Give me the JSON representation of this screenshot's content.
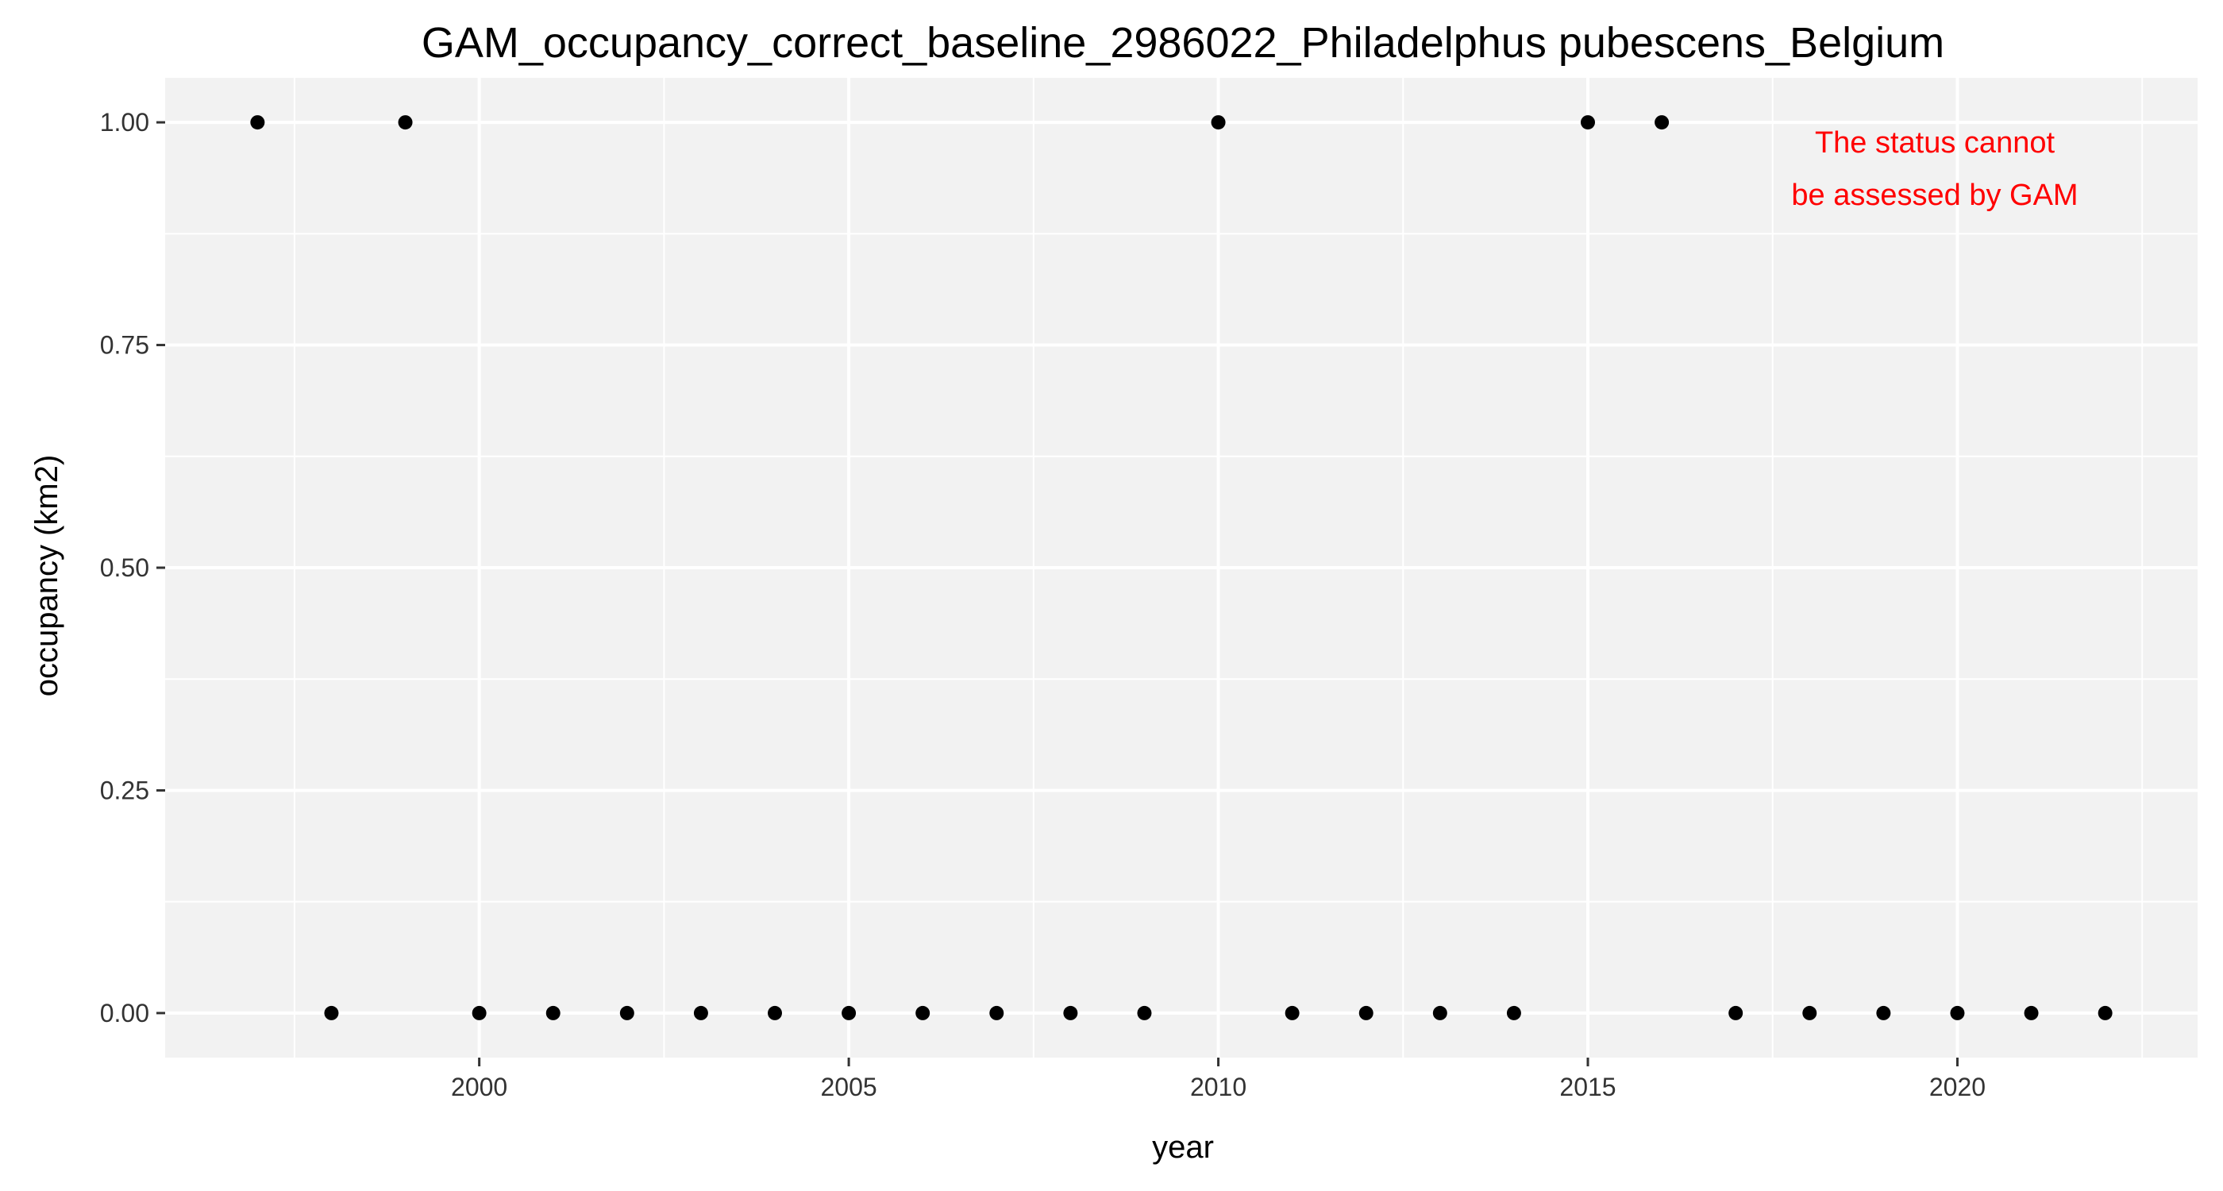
{
  "chart_data": {
    "type": "scatter",
    "title": "GAM_occupancy_correct_baseline_2986022_Philadelphus pubescens_Belgium",
    "xlabel": "year",
    "ylabel": "occupancy (km2)",
    "xlim": [
      1995.75,
      2023.25
    ],
    "ylim": [
      -0.05,
      1.05
    ],
    "x_ticks": [
      2000,
      2005,
      2010,
      2015,
      2020
    ],
    "x_tick_labels": [
      "2000",
      "2005",
      "2010",
      "2015",
      "2020"
    ],
    "y_ticks": [
      0,
      0.25,
      0.5,
      0.75,
      1.0
    ],
    "y_tick_labels": [
      "0.00",
      "0.25",
      "0.50",
      "0.75",
      "1.00"
    ],
    "grid": true,
    "legend": "none",
    "points": [
      {
        "x": 1997,
        "y": 1
      },
      {
        "x": 1998,
        "y": 0
      },
      {
        "x": 1999,
        "y": 1
      },
      {
        "x": 2000,
        "y": 0
      },
      {
        "x": 2001,
        "y": 0
      },
      {
        "x": 2002,
        "y": 0
      },
      {
        "x": 2003,
        "y": 0
      },
      {
        "x": 2004,
        "y": 0
      },
      {
        "x": 2005,
        "y": 0
      },
      {
        "x": 2006,
        "y": 0
      },
      {
        "x": 2007,
        "y": 0
      },
      {
        "x": 2008,
        "y": 0
      },
      {
        "x": 2009,
        "y": 0
      },
      {
        "x": 2010,
        "y": 1
      },
      {
        "x": 2011,
        "y": 0
      },
      {
        "x": 2012,
        "y": 0
      },
      {
        "x": 2013,
        "y": 0
      },
      {
        "x": 2014,
        "y": 0
      },
      {
        "x": 2015,
        "y": 1
      },
      {
        "x": 2016,
        "y": 1
      },
      {
        "x": 2017,
        "y": 0
      },
      {
        "x": 2018,
        "y": 0
      },
      {
        "x": 2019,
        "y": 0
      },
      {
        "x": 2020,
        "y": 0
      },
      {
        "x": 2021,
        "y": 0
      },
      {
        "x": 2022,
        "y": 0
      }
    ],
    "annotation": {
      "lines": [
        "The status cannot",
        "be assessed by GAM"
      ],
      "color": "#ff0000",
      "placement": "top-right"
    },
    "colors": {
      "panel_background": "#f2f2f2",
      "grid": "#ffffff",
      "points": "#000000"
    }
  }
}
